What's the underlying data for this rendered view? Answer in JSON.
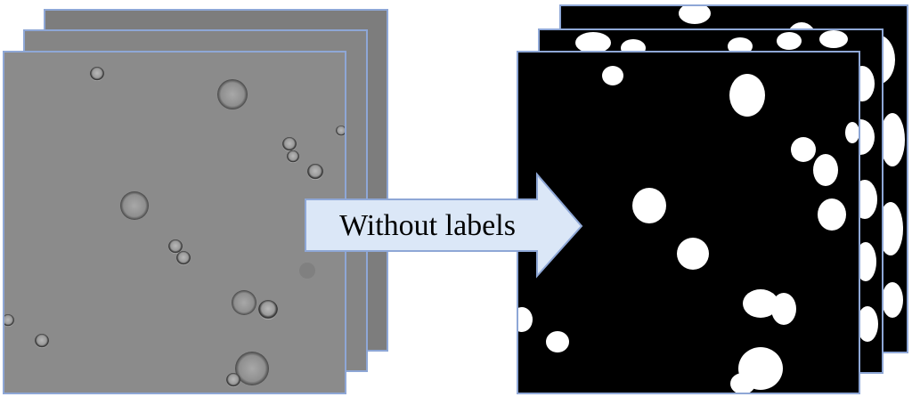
{
  "arrow": {
    "label": "Without labels",
    "fill": "#dbe7f7",
    "stroke": "#8ea7d6"
  },
  "colors": {
    "frame_border": "#8ea7d6",
    "micro_bg": "#8b8b8b",
    "mask_bg": "#000000",
    "mask_fg": "#ffffff"
  },
  "left_stack": {
    "kind": "microscopy-image-stack",
    "layers": 3
  },
  "right_stack": {
    "kind": "segmentation-mask-stack",
    "layers": 3
  }
}
